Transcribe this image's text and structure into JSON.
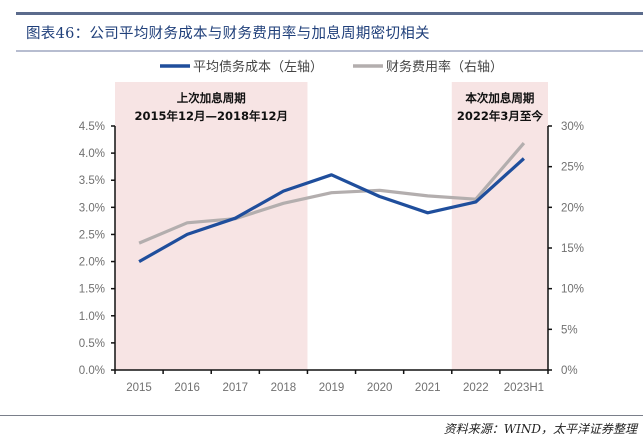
{
  "header": {
    "title": "图表46：公司平均财务成本与财务费用率与加息周期密切相关"
  },
  "footer": {
    "source": "资料来源：WIND，太平洋证券整理"
  },
  "chart_data": {
    "type": "line",
    "title": "图表46：公司平均财务成本与财务费用率与加息周期密切相关",
    "categories": [
      "2015",
      "2016",
      "2017",
      "2018",
      "2019",
      "2020",
      "2021",
      "2022",
      "2023H1"
    ],
    "series": [
      {
        "name": "平均债务成本（左轴）",
        "axis": "left",
        "color": "#1f4e9c",
        "values": [
          2.0,
          2.5,
          2.8,
          3.3,
          3.6,
          3.2,
          2.9,
          3.1,
          3.9
        ]
      },
      {
        "name": "财务费用率（右轴）",
        "axis": "right",
        "color": "#b3aeae",
        "values": [
          15.6,
          18.1,
          18.6,
          20.5,
          21.8,
          22.1,
          21.4,
          21.0,
          27.9
        ]
      }
    ],
    "left_axis": {
      "ylim": [
        0,
        4.5
      ],
      "ticks": [
        "0.0%",
        "0.5%",
        "1.0%",
        "1.5%",
        "2.0%",
        "2.5%",
        "3.0%",
        "3.5%",
        "4.0%",
        "4.5%"
      ]
    },
    "right_axis": {
      "ylim": [
        0,
        30
      ],
      "ticks": [
        "0%",
        "5%",
        "10%",
        "15%",
        "20%",
        "25%",
        "30%"
      ]
    },
    "legend_position": "top-center",
    "grid": false,
    "shaded_regions": [
      {
        "from": "2015",
        "to": "2018",
        "color": "#f7e4e4",
        "label_line1": "上次加息周期",
        "label_line2": "2015年12月—2018年12月"
      },
      {
        "from": "2022",
        "to": "2023H1",
        "color": "#f7e4e4",
        "label_line1": "本次加息周期",
        "label_line2": "2022年3月至今"
      }
    ]
  }
}
